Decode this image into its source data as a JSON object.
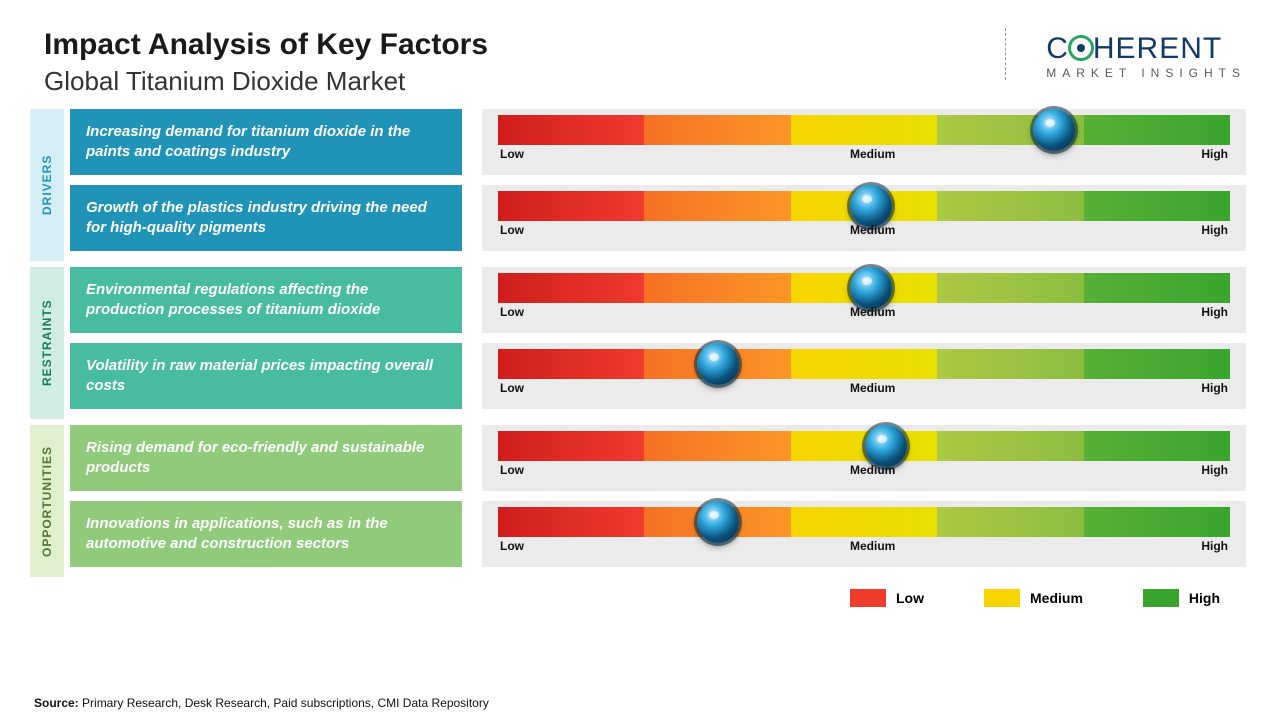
{
  "title": "Impact Analysis of Key Factors",
  "subtitle": "Global Titanium Dioxide Market",
  "logo": {
    "main_a": "C",
    "main_b": "HERENT",
    "sub": "MARKET INSIGHTS"
  },
  "scale": {
    "low": "Low",
    "medium": "Medium",
    "high": "High"
  },
  "colors": {
    "track_segments": [
      "#ef3b2c",
      "#fb9726",
      "#f8d500",
      "#8bbe3f",
      "#3aa52e"
    ],
    "marker_accent": "#2fa9df",
    "background": "#ffffff",
    "row_bg": "#ebebeb",
    "drivers_tab": "#d5edf5",
    "drivers_box": "#1f93b8",
    "restraints_tab": "#d1ede3",
    "restraints_box": "#48bca0",
    "opportunities_tab": "#e0f0cf",
    "opportunities_box": "#8fcb7a",
    "drivers_text": "#1f93b8",
    "restraints_text": "#1a7a63",
    "opportunities_text": "#4a7a2c"
  },
  "marker_scale": {
    "min_pct": 2,
    "max_pct": 98
  },
  "groups": [
    {
      "id": "drivers",
      "label": "DRIVERS",
      "tab_bg": "#d5edf5",
      "tab_text": "#1f93b8",
      "box_bg": "#1f93b8",
      "factors": [
        {
          "text": "Increasing demand for titanium dioxide in the paints and coatings industry",
          "position_pct": 76
        },
        {
          "text": "Growth of the plastics industry driving the need for high-quality pigments",
          "position_pct": 51
        }
      ]
    },
    {
      "id": "restraints",
      "label": "RESTRAINTS",
      "tab_bg": "#d1ede3",
      "tab_text": "#1a7a63",
      "box_bg": "#48bca0",
      "factors": [
        {
          "text": "Environmental regulations affecting the production processes of titanium dioxide",
          "position_pct": 51
        },
        {
          "text": "Volatility in raw material prices impacting overall costs",
          "position_pct": 30
        }
      ]
    },
    {
      "id": "opportunities",
      "label": "OPPORTUNITIES",
      "tab_bg": "#e0f0cf",
      "tab_text": "#4a7a2c",
      "box_bg": "#8fcb7a",
      "factors": [
        {
          "text": "Rising demand for eco-friendly and sustainable products",
          "position_pct": 53
        },
        {
          "text": "Innovations in applications, such as in the automotive and construction sectors",
          "position_pct": 30
        }
      ]
    }
  ],
  "legend": [
    {
      "label": "Low",
      "color": "#ef3b2c"
    },
    {
      "label": "Medium",
      "color": "#f8d500"
    },
    {
      "label": "High",
      "color": "#3aa52e"
    }
  ],
  "source": {
    "prefix": "Source:",
    "text": " Primary Research, Desk Research, Paid subscriptions, CMI Data Repository"
  }
}
